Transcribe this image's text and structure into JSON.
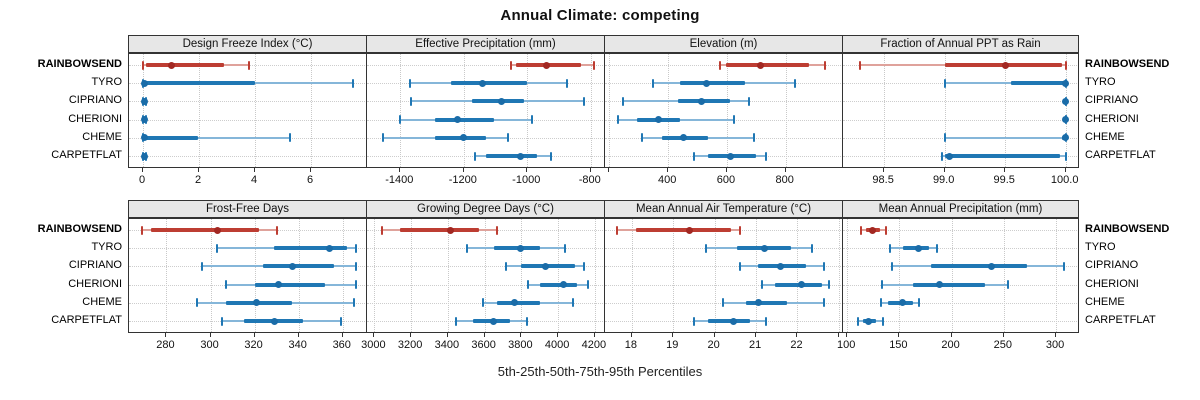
{
  "title": "Annual Climate: competing",
  "caption": "5th-25th-50th-75th-95th Percentiles",
  "categories": [
    "RAINBOWSEND",
    "TYRO",
    "CIPRIANO",
    "CHERIONI",
    "CHEME",
    "CARPETFLAT"
  ],
  "highlight_category": "RAINBOWSEND",
  "colors": {
    "blue_bar": "#1f77b4",
    "blue_whisker": "#85b6d9",
    "blue_dot": "#1a6ca8",
    "red_bar": "#bd3d32",
    "red_whisker": "#dfa29b",
    "red_dot": "#a22822",
    "strip_bg": "#e7e7e7",
    "panel_border": "#333333",
    "grid": "#c9c9c9"
  },
  "chart_data": {
    "type": "dotplot-interval",
    "note": "Each row shows 5th-25th-50th-75th-95th percentiles: thin whisker p5-p95 with end caps, thick bar p25-p75, dot at median. RAINBOWSEND series drawn in red, all others blue.",
    "legend_position": "none",
    "grid": "dotted vertical at ticks, dotted horizontal row guides",
    "panels": [
      {
        "row": 0,
        "col": 0,
        "title": "Design Freeze Index (°C)",
        "domain": [
          -0.5,
          8.0
        ],
        "ticks": [
          {
            "v": 0,
            "label": "0"
          },
          {
            "v": 2,
            "label": "2"
          },
          {
            "v": 4,
            "label": "4"
          },
          {
            "v": 6,
            "label": "6"
          }
        ],
        "series": [
          [
            0.0,
            0.1,
            1.0,
            2.9,
            3.8
          ],
          [
            0.0,
            0.0,
            0.05,
            4.0,
            7.5
          ],
          [
            0.0,
            0.0,
            0.05,
            0.1,
            0.12
          ],
          [
            0.0,
            0.0,
            0.05,
            0.1,
            0.12
          ],
          [
            0.0,
            0.0,
            0.05,
            1.95,
            5.25
          ],
          [
            0.0,
            0.0,
            0.05,
            0.1,
            0.12
          ]
        ]
      },
      {
        "row": 0,
        "col": 1,
        "title": "Effective Precipitation (mm)",
        "domain": [
          -1505,
          -755
        ],
        "ticks": [
          {
            "v": -1400,
            "label": "-1400"
          },
          {
            "v": -1200,
            "label": "-1200"
          },
          {
            "v": -1000,
            "label": "-1000"
          },
          {
            "v": -800,
            "label": "-800"
          }
        ],
        "series": [
          [
            -1050,
            -1035,
            -940,
            -830,
            -790
          ],
          [
            -1370,
            -1240,
            -1140,
            -1000,
            -875
          ],
          [
            -1365,
            -1175,
            -1080,
            -1010,
            -820
          ],
          [
            -1400,
            -1290,
            -1220,
            -1105,
            -985
          ],
          [
            -1455,
            -1290,
            -1200,
            -1130,
            -1060
          ],
          [
            -1165,
            -1130,
            -1020,
            -970,
            -925
          ]
        ]
      },
      {
        "row": 0,
        "col": 2,
        "title": "Elevation (m)",
        "domain": [
          185,
          995
        ],
        "ticks": [
          {
            "v": 200,
            "label": ""
          },
          {
            "v": 400,
            "label": "400"
          },
          {
            "v": 600,
            "label": "600"
          },
          {
            "v": 800,
            "label": "800"
          }
        ],
        "series": [
          [
            578,
            598,
            715,
            880,
            935
          ],
          [
            350,
            440,
            532,
            660,
            830
          ],
          [
            246,
            433,
            515,
            610,
            675
          ],
          [
            230,
            295,
            366,
            440,
            623
          ],
          [
            312,
            380,
            451,
            536,
            691
          ],
          [
            488,
            536,
            613,
            700,
            732
          ]
        ]
      },
      {
        "row": 0,
        "col": 3,
        "title": "Fraction of Annual PPT as Rain",
        "domain": [
          98.16,
          100.11
        ],
        "ticks": [
          {
            "v": 98.5,
            "label": "98.5"
          },
          {
            "v": 99.0,
            "label": "99.0"
          },
          {
            "v": 99.5,
            "label": "99.5"
          },
          {
            "v": 100.0,
            "label": "100.0"
          }
        ],
        "series": [
          [
            98.3,
            99.0,
            99.5,
            99.97,
            100.0
          ],
          [
            99.0,
            99.55,
            100.0,
            100.0,
            100.0
          ],
          [
            100.0,
            100.0,
            100.0,
            100.0,
            100.0
          ],
          [
            100.0,
            100.0,
            100.0,
            100.0,
            100.0
          ],
          [
            99.0,
            99.97,
            100.0,
            100.0,
            100.0
          ],
          [
            98.98,
            99.0,
            99.04,
            99.95,
            100.0
          ]
        ]
      },
      {
        "row": 1,
        "col": 0,
        "title": "Frost-Free Days",
        "domain": [
          263,
          371
        ],
        "ticks": [
          {
            "v": 280,
            "label": "280"
          },
          {
            "v": 300,
            "label": "300"
          },
          {
            "v": 320,
            "label": "320"
          },
          {
            "v": 340,
            "label": "340"
          },
          {
            "v": 360,
            "label": "360"
          }
        ],
        "series": [
          [
            269,
            273,
            303,
            322,
            330
          ],
          [
            303,
            329,
            354,
            362,
            366
          ],
          [
            296,
            324,
            337,
            356,
            366
          ],
          [
            307,
            320,
            331,
            352,
            366
          ],
          [
            294,
            307,
            321,
            337,
            365
          ],
          [
            305,
            315,
            329,
            342,
            359
          ]
        ]
      },
      {
        "row": 1,
        "col": 1,
        "title": "Growing Degree Days (°C)",
        "domain": [
          2960,
          4255
        ],
        "ticks": [
          {
            "v": 3000,
            "label": "3000"
          },
          {
            "v": 3200,
            "label": "3200"
          },
          {
            "v": 3400,
            "label": "3400"
          },
          {
            "v": 3600,
            "label": "3600"
          },
          {
            "v": 3800,
            "label": "3800"
          },
          {
            "v": 4000,
            "label": "4000"
          },
          {
            "v": 4200,
            "label": "4200"
          }
        ],
        "series": [
          [
            3040,
            3140,
            3415,
            3570,
            3665
          ],
          [
            3505,
            3650,
            3795,
            3900,
            4040
          ],
          [
            3715,
            3800,
            3930,
            4090,
            4140
          ],
          [
            3835,
            3900,
            4030,
            4100,
            4160
          ],
          [
            3590,
            3665,
            3760,
            3900,
            4080
          ],
          [
            3445,
            3535,
            3650,
            3740,
            3830
          ]
        ]
      },
      {
        "row": 1,
        "col": 2,
        "title": "Mean Annual Air Temperature (°C)",
        "domain": [
          17.35,
          23.1
        ],
        "ticks": [
          {
            "v": 18,
            "label": "18"
          },
          {
            "v": 19,
            "label": "19"
          },
          {
            "v": 20,
            "label": "20"
          },
          {
            "v": 21,
            "label": "21"
          },
          {
            "v": 22,
            "label": "22"
          },
          {
            "v": 23,
            "label": ""
          }
        ],
        "series": [
          [
            17.65,
            18.1,
            19.4,
            20.4,
            20.6
          ],
          [
            19.8,
            20.55,
            21.2,
            21.85,
            22.35
          ],
          [
            20.6,
            21.05,
            21.6,
            22.2,
            22.65
          ],
          [
            21.15,
            21.45,
            22.1,
            22.6,
            22.75
          ],
          [
            20.2,
            20.75,
            21.05,
            21.75,
            22.65
          ],
          [
            19.5,
            19.85,
            20.45,
            20.85,
            21.25
          ]
        ]
      },
      {
        "row": 1,
        "col": 3,
        "title": "Mean Annual Precipitation (mm)",
        "domain": [
          96,
          322
        ],
        "ticks": [
          {
            "v": 100,
            "label": "100"
          },
          {
            "v": 150,
            "label": "150"
          },
          {
            "v": 200,
            "label": "200"
          },
          {
            "v": 250,
            "label": "250"
          },
          {
            "v": 300,
            "label": "300"
          }
        ],
        "series": [
          [
            113,
            118,
            124,
            131,
            137
          ],
          [
            141,
            153,
            168,
            178,
            186
          ],
          [
            143,
            180,
            238,
            272,
            308
          ],
          [
            133,
            163,
            188,
            232,
            254
          ],
          [
            132,
            139,
            153,
            163,
            169
          ],
          [
            110,
            115,
            120,
            128,
            134
          ]
        ]
      }
    ]
  }
}
